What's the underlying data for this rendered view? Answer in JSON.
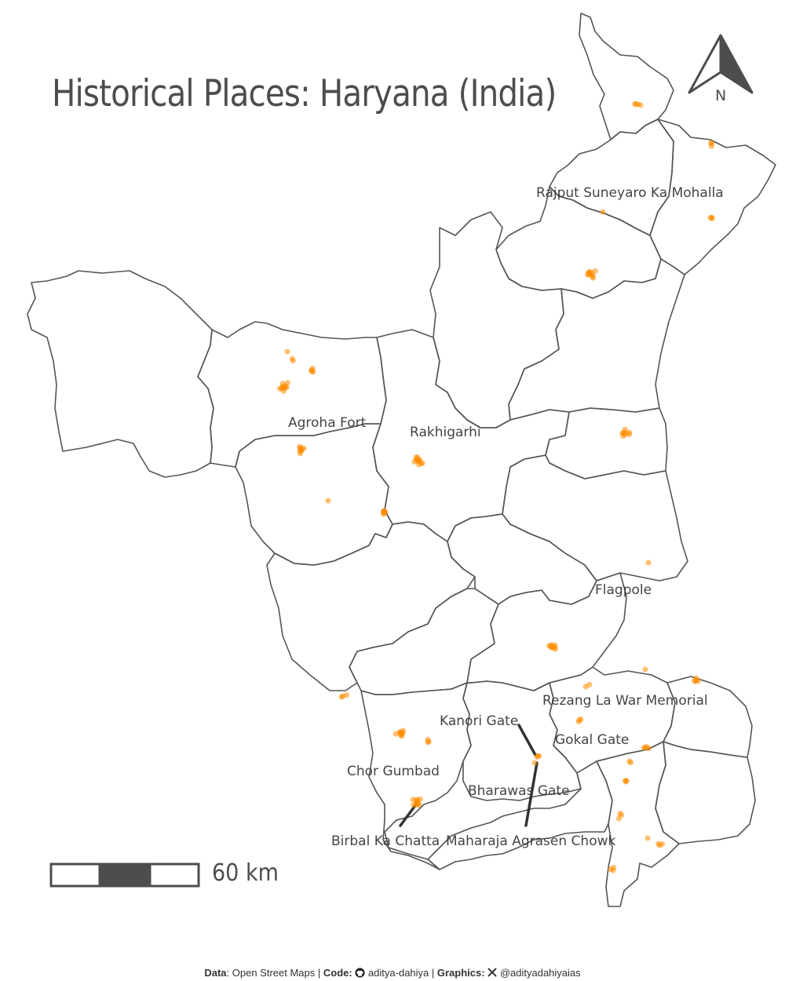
{
  "title": "Historical Places: Haryana (India)",
  "compass": {
    "letter": "N",
    "icon": "north-arrow-icon"
  },
  "scale_bar": {
    "label": "60 km"
  },
  "colors": {
    "dot": "#ff8c00",
    "border": "#555555",
    "text": "#4d4d4d"
  },
  "labels": [
    {
      "id": "rajput",
      "text": "Rajput Suneyaro Ka Mohalla"
    },
    {
      "id": "agroha",
      "text": "Agroha Fort"
    },
    {
      "id": "rakhigarhi",
      "text": "Rakhigarhi"
    },
    {
      "id": "flagpole",
      "text": "Flagpole"
    },
    {
      "id": "rezang",
      "text": "Rezang La War Memorial"
    },
    {
      "id": "kanori",
      "text": "Kanori Gate"
    },
    {
      "id": "gokal",
      "text": "Gokal Gate"
    },
    {
      "id": "chor",
      "text": "Chor Gumbad"
    },
    {
      "id": "bharawas",
      "text": "Bharawas Gate"
    },
    {
      "id": "birbal",
      "text": "Birbal Ka Chatta"
    },
    {
      "id": "maharaja",
      "text": "Maharaja Agrasen Chowk"
    }
  ],
  "caption": {
    "data_label": "Data",
    "data_value": ": Open Street Maps | ",
    "code_label": "Code:",
    "code_handle": "aditya-dahiya",
    "separator": " | ",
    "graphics_label": "Graphics:",
    "graphics_handle": "@adityadahiyaias",
    "github_icon": "github-icon",
    "x_icon": "x-logo-icon"
  }
}
